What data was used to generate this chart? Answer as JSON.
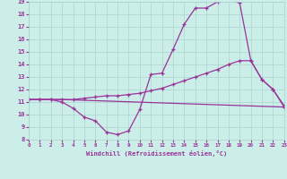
{
  "xlabel": "Windchill (Refroidissement éolien,°C)",
  "bg_color": "#cceee8",
  "grid_color": "#aad4ce",
  "line_color": "#993399",
  "xmin": 0,
  "xmax": 23,
  "ymin": 8,
  "ymax": 19,
  "yticks": [
    8,
    9,
    10,
    11,
    12,
    13,
    14,
    15,
    16,
    17,
    18,
    19
  ],
  "xticks": [
    0,
    1,
    2,
    3,
    4,
    5,
    6,
    7,
    8,
    9,
    10,
    11,
    12,
    13,
    14,
    15,
    16,
    17,
    18,
    19,
    20,
    21,
    22,
    23
  ],
  "line1_x": [
    0,
    1,
    2,
    3,
    4,
    5,
    6,
    7,
    8,
    9,
    10,
    11,
    12,
    13,
    14,
    15,
    16,
    17,
    18,
    19,
    20,
    21,
    22,
    23
  ],
  "line1_y": [
    11.2,
    11.2,
    11.2,
    11.0,
    10.5,
    9.8,
    9.5,
    8.6,
    8.4,
    8.7,
    10.4,
    13.2,
    13.3,
    15.2,
    17.2,
    18.5,
    18.5,
    19.0,
    19.2,
    18.9,
    14.3,
    12.8,
    12.0,
    10.7
  ],
  "line2_x": [
    0,
    1,
    2,
    3,
    4,
    5,
    6,
    7,
    8,
    9,
    10,
    11,
    12,
    13,
    14,
    15,
    16,
    17,
    18,
    19,
    20,
    21,
    22,
    23
  ],
  "line2_y": [
    11.2,
    11.2,
    11.2,
    11.2,
    11.2,
    11.3,
    11.4,
    11.5,
    11.5,
    11.6,
    11.7,
    11.9,
    12.1,
    12.4,
    12.7,
    13.0,
    13.3,
    13.6,
    14.0,
    14.3,
    14.3,
    12.8,
    12.0,
    10.6
  ],
  "line3_x": [
    0,
    3,
    23
  ],
  "line3_y": [
    11.2,
    11.2,
    10.6
  ]
}
